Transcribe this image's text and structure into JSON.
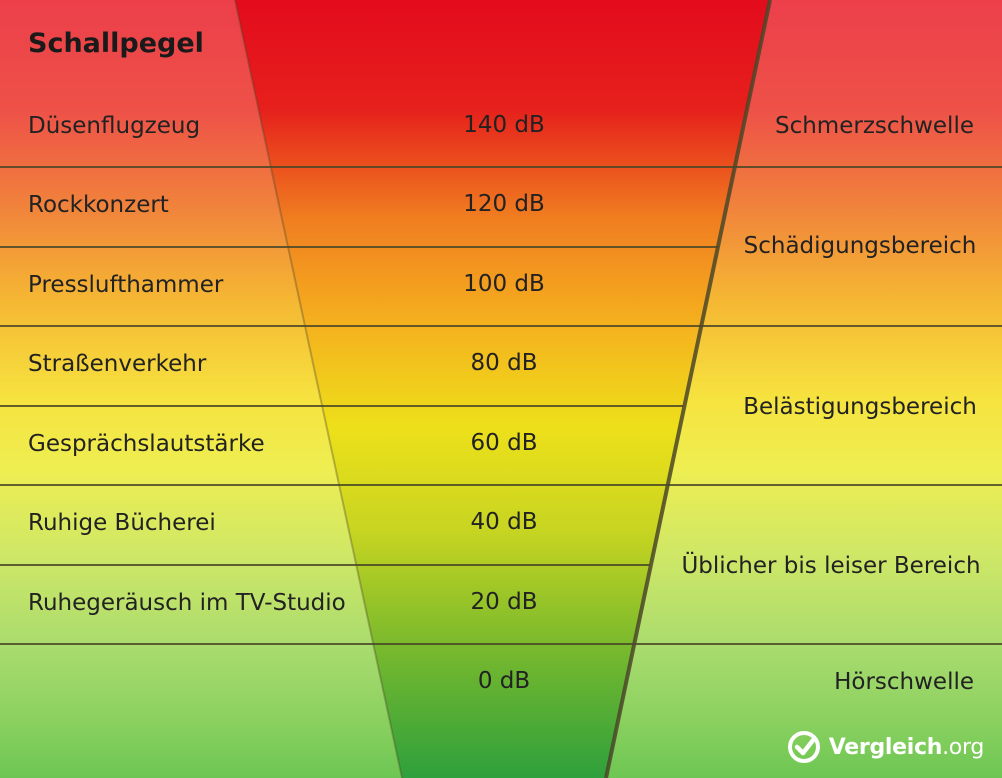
{
  "title": "Schallpegel",
  "rows": [
    {
      "source": "Düsenflugzeug",
      "level": "140 dB"
    },
    {
      "source": "Rockkonzert",
      "level": "120 dB"
    },
    {
      "source": "Presslufthammer",
      "level": "100 dB"
    },
    {
      "source": "Straßenverkehr",
      "level": "80 dB"
    },
    {
      "source": "Gesprächslautstärke",
      "level": "60 dB"
    },
    {
      "source": "Ruhige Bücherei",
      "level": "40 dB"
    },
    {
      "source": "Ruhegeräusch im TV-Studio",
      "level": "20 dB"
    },
    {
      "source": "",
      "level": "0 dB"
    }
  ],
  "zones": [
    {
      "label": "Schmerzschwelle"
    },
    {
      "label": "Schädigungsbereich"
    },
    {
      "label": "Belästigungsbereich"
    },
    {
      "label": "Üblicher bis leiser Bereich"
    },
    {
      "label": "Hörschwelle"
    }
  ],
  "brand": {
    "name": "Vergleich",
    "suffix": ".org",
    "icon": "checkmark-icon"
  },
  "colors": {
    "funnel_top": "#e30b1c",
    "funnel_mid_orange": "#f07d20",
    "funnel_mid_yellow": "#ede01a",
    "funnel_bottom": "#2ea03c",
    "line_color": "#4a4628"
  }
}
